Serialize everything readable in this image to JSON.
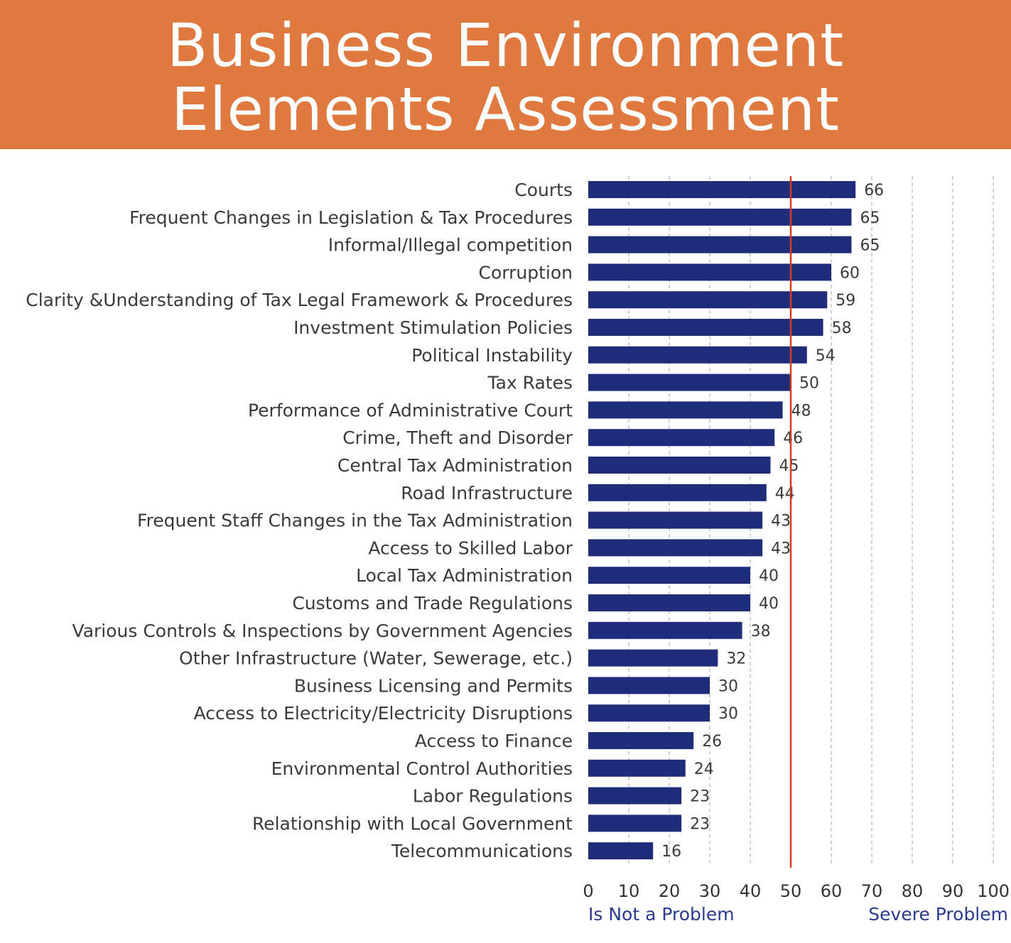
{
  "header": {
    "title_line1": "Business Environment",
    "title_line2": "Elements Assessment"
  },
  "colors": {
    "header_bg": "#e0793f",
    "bar": "#1f2c7a",
    "reference_line": "#d63a1e",
    "legend_text": "#2b3a8f"
  },
  "chart_data": {
    "type": "bar",
    "orientation": "horizontal",
    "title": "Business Environment Elements Assessment",
    "categories": [
      "Courts",
      "Frequent Changes in Legislation & Tax Procedures",
      "Informal/Illegal competition",
      "Corruption",
      "Clarity &Understanding of Tax Legal Framework & Procedures",
      "Investment Stimulation Policies",
      "Political Instability",
      "Tax Rates",
      "Performance of Administrative Court",
      "Crime, Theft and Disorder",
      "Central Tax Administration",
      "Road Infrastructure",
      "Frequent Staff Changes in the Tax Administration",
      "Access to Skilled Labor",
      "Local Tax Administration",
      "Customs and Trade Regulations",
      "Various Controls & Inspections by Government Agencies",
      "Other Infrastructure (Water, Sewerage, etc.)",
      "Business Licensing and Permits",
      "Access to Electricity/Electricity Disruptions",
      "Access to Finance",
      "Environmental Control Authorities",
      "Labor Regulations",
      "Relationship with Local Government",
      "Telecommunications"
    ],
    "values": [
      66,
      65,
      65,
      60,
      59,
      58,
      54,
      50,
      48,
      46,
      45,
      44,
      43,
      43,
      40,
      40,
      38,
      32,
      30,
      30,
      26,
      24,
      23,
      23,
      16
    ],
    "xlim": [
      0,
      100
    ],
    "xticks": [
      "0",
      "10",
      "20",
      "30",
      "40",
      "50",
      "60",
      "70",
      "80",
      "90",
      "100"
    ],
    "reference_line": 50,
    "grid": "vertical dashed",
    "axis_left_label": "Is Not a Problem",
    "axis_right_label": "Severe Problem"
  }
}
